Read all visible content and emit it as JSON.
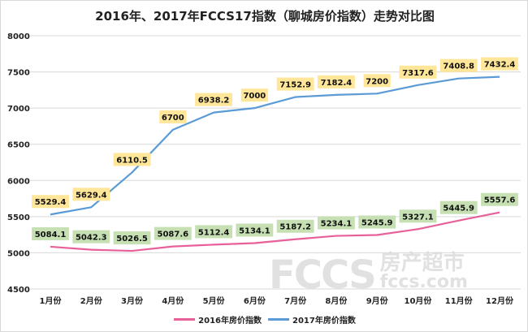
{
  "chart_data": {
    "type": "line",
    "title": "2016年、2017年FCCS17指数（聊城房价指数）走势对比图",
    "xlabel": "",
    "ylabel": "",
    "categories": [
      "1月份",
      "2月份",
      "3月份",
      "4月份",
      "5月份",
      "6月份",
      "7月份",
      "8月份",
      "9月份",
      "10月份",
      "11月份",
      "12月份"
    ],
    "ylim": [
      4500,
      8000
    ],
    "yticks": [
      4500,
      5000,
      5500,
      6000,
      6500,
      7000,
      7500,
      8000
    ],
    "grid": true,
    "legend_position": "bottom",
    "series": [
      {
        "name": "2016年房价指数",
        "color": "#e8609a",
        "label_bg": "#c6e0b4",
        "values": [
          5084.1,
          5042.3,
          5026.5,
          5087.6,
          5112.4,
          5134.1,
          5187.2,
          5234.1,
          5245.9,
          5327.1,
          5445.9,
          5557.6
        ]
      },
      {
        "name": "2017年房价指数",
        "color": "#5b9bd5",
        "label_bg": "#ffe699",
        "values": [
          5529.4,
          5629.4,
          6110.5,
          6700,
          6938.2,
          7000,
          7152.9,
          7182.4,
          7200,
          7317.6,
          7408.8,
          7432.4
        ]
      }
    ]
  },
  "watermark": {
    "logo": "FCCS",
    "cn": "房产超市",
    "url": "fccs.com"
  }
}
